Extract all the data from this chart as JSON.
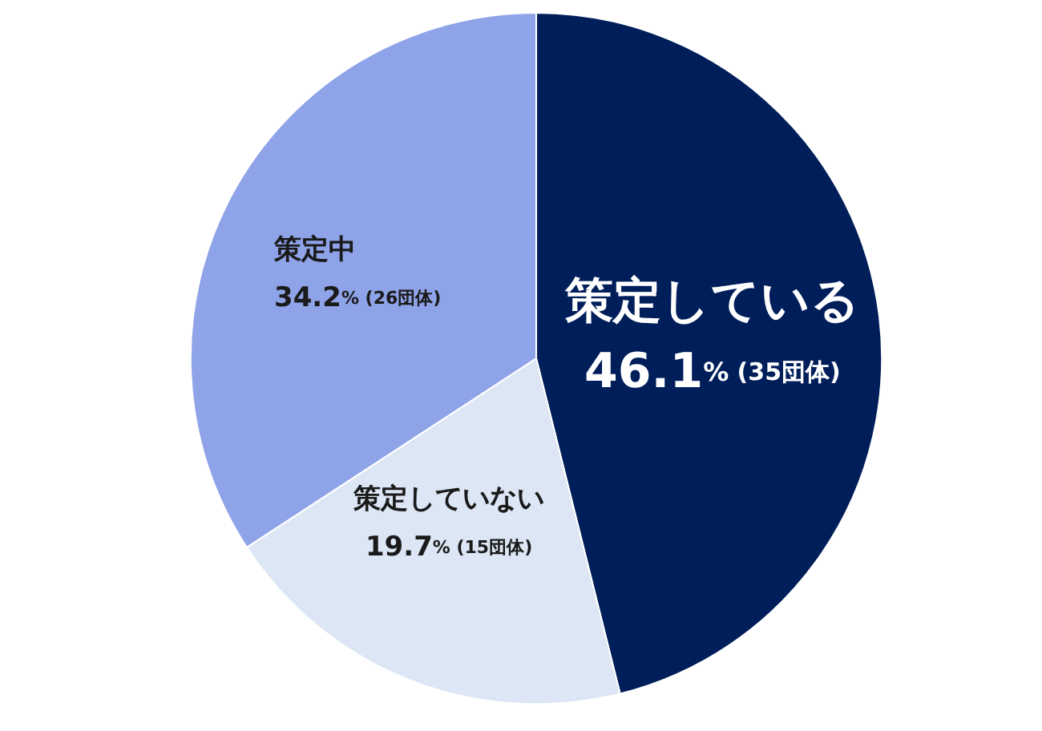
{
  "chart_data": {
    "type": "pie",
    "categories": [
      "策定している",
      "策定していない",
      "策定中"
    ],
    "values": [
      46.1,
      19.7,
      34.2
    ],
    "colors": [
      "#001e5a",
      "#dce6f4",
      "#8ea3e8"
    ],
    "value_labels": [
      "46.1% (35団体)",
      "19.7% (15団体)",
      "34.2% (26団体)"
    ],
    "legend": false
  }
}
